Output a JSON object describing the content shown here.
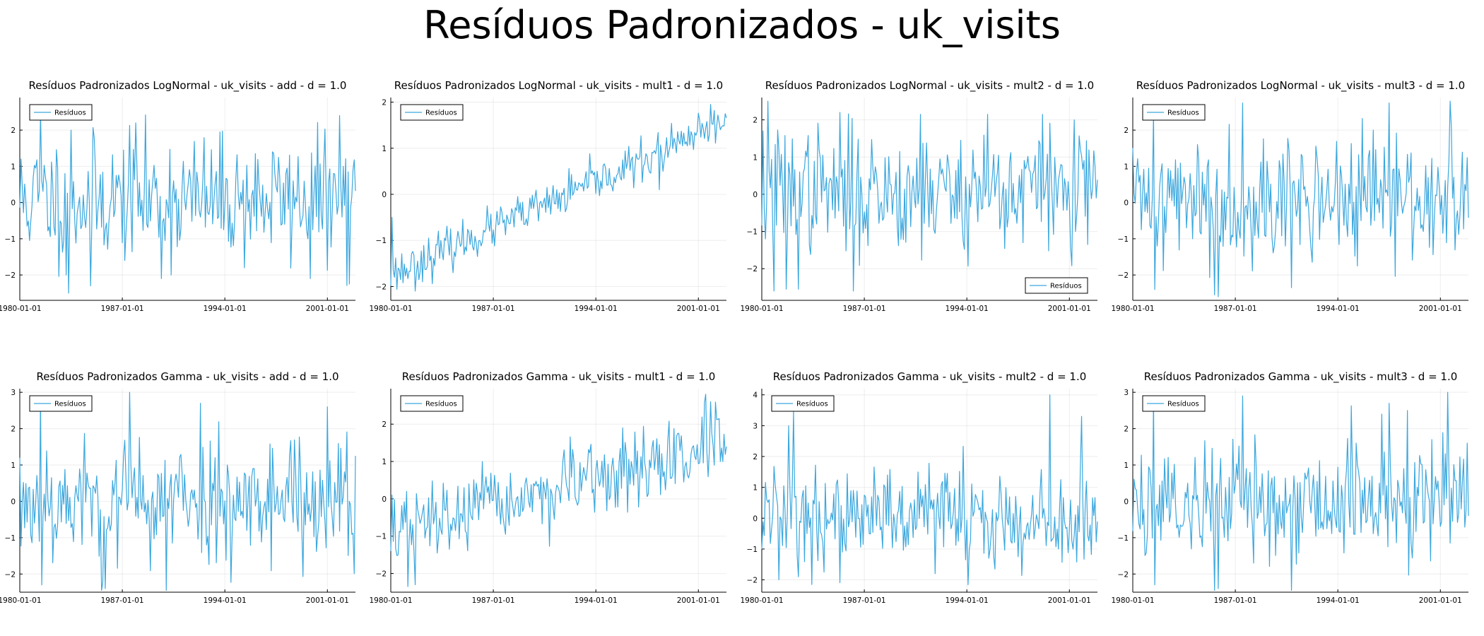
{
  "title": "Resíduos Padronizados - uk_visits",
  "series_color": "#3ba7de",
  "chart_data": [
    {
      "type": "line",
      "title": "Resíduos Padronizados LogNormal - uk_visits - add - d = 1.0",
      "ylim": [
        -2.7,
        2.9
      ],
      "yticks": [
        -2,
        -1,
        0,
        1,
        2
      ],
      "xticks": [
        "1980-01-01",
        "1987-01-01",
        "1994-01-01",
        "2001-01-01"
      ],
      "legend": "top-left",
      "grid": true,
      "trend": [
        0.1,
        0.1
      ],
      "amp": 0.85,
      "peaks": [
        [
          17,
          2.5
        ],
        [
          40,
          -2.5
        ],
        [
          42,
          2.0
        ],
        [
          58,
          -2.3
        ],
        [
          95,
          2.2
        ],
        [
          116,
          -2.1
        ],
        [
          238,
          -2.1
        ],
        [
          262,
          2.4
        ],
        [
          270,
          -2.25
        ],
        [
          38,
          -2.0
        ]
      ],
      "seed": 11,
      "series": [
        {
          "name": "Resíduos",
          "values": []
        }
      ]
    },
    {
      "type": "line",
      "title": "Resíduos Padronizados LogNormal - uk_visits - mult1 - d = 1.0",
      "ylim": [
        -2.3,
        2.1
      ],
      "yticks": [
        -2,
        -1,
        0,
        1,
        2
      ],
      "xticks": [
        "1980-01-01",
        "1987-01-01",
        "1994-01-01",
        "2001-01-01"
      ],
      "legend": "top-left",
      "grid": true,
      "trend": [
        -1.75,
        1.55
      ],
      "amp": 0.22,
      "peaks": [
        [
          1,
          -0.5
        ],
        [
          20,
          -2.1
        ],
        [
          220,
          0.1
        ],
        [
          262,
          1.95
        ]
      ],
      "seed": 23,
      "series": [
        {
          "name": "Resíduos",
          "values": []
        }
      ]
    },
    {
      "type": "line",
      "title": "Resíduos Padronizados LogNormal - uk_visits - mult2 - d = 1.0",
      "ylim": [
        -2.85,
        2.6
      ],
      "yticks": [
        -2,
        -1,
        0,
        1,
        2
      ],
      "xticks": [
        "1980-01-01",
        "1987-01-01",
        "1994-01-01",
        "2001-01-01"
      ],
      "legend": "bottom-right",
      "grid": true,
      "trend": [
        0.1,
        0.1
      ],
      "amp": 0.85,
      "peaks": [
        [
          5,
          2.5
        ],
        [
          10,
          -2.6
        ],
        [
          20,
          -2.55
        ],
        [
          30,
          -2.55
        ],
        [
          64,
          2.2
        ],
        [
          75,
          -2.6
        ],
        [
          130,
          2.15
        ],
        [
          185,
          2.15
        ],
        [
          230,
          2.15
        ]
      ],
      "seed": 37,
      "series": [
        {
          "name": "Resíduos",
          "values": []
        }
      ]
    },
    {
      "type": "line",
      "title": "Resíduos Padronizados LogNormal - uk_visits - mult3 - d = 1.0",
      "ylim": [
        -2.7,
        2.9
      ],
      "yticks": [
        -2,
        -1,
        0,
        1,
        2
      ],
      "xticks": [
        "1980-01-01",
        "1987-01-01",
        "1994-01-01",
        "2001-01-01"
      ],
      "legend": "top-left",
      "grid": true,
      "trend": [
        0.1,
        0.1
      ],
      "amp": 0.85,
      "peaks": [
        [
          17,
          2.5
        ],
        [
          18,
          -2.4
        ],
        [
          67,
          -2.55
        ],
        [
          70,
          -2.6
        ],
        [
          90,
          2.75
        ],
        [
          130,
          -2.35
        ],
        [
          260,
          2.8
        ],
        [
          210,
          2.75
        ]
      ],
      "seed": 41,
      "series": [
        {
          "name": "Resíduos",
          "values": []
        }
      ]
    },
    {
      "type": "line",
      "title": "Resíduos Padronizados Gamma - uk_visits - add - d = 1.0",
      "ylim": [
        -2.5,
        3.1
      ],
      "yticks": [
        -2,
        -1,
        0,
        1,
        2,
        3
      ],
      "xticks": [
        "1980-01-01",
        "1987-01-01",
        "1994-01-01",
        "2001-01-01"
      ],
      "legend": "top-left",
      "grid": true,
      "trend": [
        0.0,
        0.1
      ],
      "amp": 0.85,
      "peaks": [
        [
          17,
          2.9
        ],
        [
          18,
          -2.3
        ],
        [
          67,
          -2.45
        ],
        [
          70,
          -2.4
        ],
        [
          90,
          3.0
        ],
        [
          120,
          -2.45
        ],
        [
          148,
          2.7
        ],
        [
          252,
          2.6
        ]
      ],
      "seed": 53,
      "series": [
        {
          "name": "Resíduos",
          "values": []
        }
      ]
    },
    {
      "type": "line",
      "title": "Resíduos Padronizados Gamma - uk_visits - mult1 - d = 1.0",
      "ylim": [
        -2.5,
        2.95
      ],
      "yticks": [
        -2,
        -1,
        0,
        1,
        2
      ],
      "xticks": [
        "1980-01-01",
        "1987-01-01",
        "1994-01-01",
        "2001-01-01"
      ],
      "legend": "top-left",
      "grid": true,
      "trend": [
        -0.9,
        1.4
      ],
      "amp": 0.5,
      "peaks": [
        [
          1,
          0.1
        ],
        [
          14,
          -2.35
        ],
        [
          20,
          -2.3
        ],
        [
          258,
          2.8
        ],
        [
          262,
          2.6
        ]
      ],
      "seed": 67,
      "series": [
        {
          "name": "Resíduos",
          "values": []
        }
      ]
    },
    {
      "type": "line",
      "title": "Resíduos Padronizados Gamma - uk_visits - mult2 - d = 1.0",
      "ylim": [
        -2.4,
        4.2
      ],
      "yticks": [
        -2,
        -1,
        0,
        1,
        2,
        3,
        4
      ],
      "xticks": [
        "1980-01-01",
        "1987-01-01",
        "1994-01-01",
        "2001-01-01"
      ],
      "legend": "top-left",
      "grid": true,
      "trend": [
        0.15,
        -0.1
      ],
      "amp": 0.75,
      "peaks": [
        [
          14,
          -2.0
        ],
        [
          22,
          3.0
        ],
        [
          26,
          3.45
        ],
        [
          41,
          -2.15
        ],
        [
          30,
          -1.9
        ],
        [
          236,
          4.0
        ],
        [
          262,
          3.3
        ]
      ],
      "seed": 79,
      "series": [
        {
          "name": "Resíduos",
          "values": []
        }
      ]
    },
    {
      "type": "line",
      "title": "Resíduos Padronizados Gamma - uk_visits - mult3 - d = 1.0",
      "ylim": [
        -2.5,
        3.1
      ],
      "yticks": [
        -2,
        -1,
        0,
        1,
        2,
        3
      ],
      "xticks": [
        "1980-01-01",
        "1987-01-01",
        "1994-01-01",
        "2001-01-01"
      ],
      "legend": "top-left",
      "grid": true,
      "trend": [
        0.0,
        0.1
      ],
      "amp": 0.85,
      "peaks": [
        [
          17,
          2.9
        ],
        [
          18,
          -2.3
        ],
        [
          67,
          -2.45
        ],
        [
          70,
          -2.4
        ],
        [
          90,
          2.9
        ],
        [
          130,
          -2.45
        ],
        [
          258,
          3.0
        ],
        [
          210,
          2.7
        ]
      ],
      "seed": 89,
      "series": [
        {
          "name": "Resíduos",
          "values": []
        }
      ]
    }
  ]
}
